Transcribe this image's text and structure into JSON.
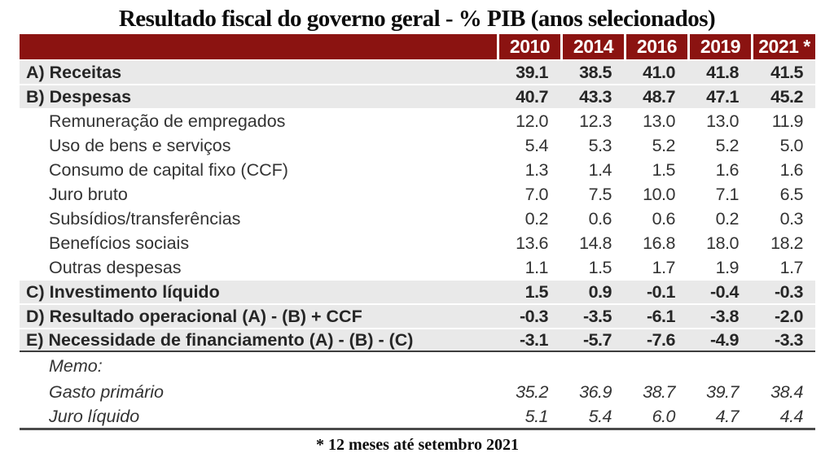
{
  "chart_data": {
    "type": "table",
    "title": "Resultado fiscal do governo geral - % PIB (anos selecionados)",
    "unit": "% PIB",
    "columns": [
      "2010",
      "2014",
      "2016",
      "2019",
      "2021 *"
    ],
    "rows": [
      {
        "label": "A) Receitas",
        "style": "total",
        "values": [
          "39.1",
          "38.5",
          "41.0",
          "41.8",
          "41.5"
        ]
      },
      {
        "label": "B) Despesas",
        "style": "total",
        "values": [
          "40.7",
          "43.3",
          "48.7",
          "47.1",
          "45.2"
        ]
      },
      {
        "label": "Remuneração de empregados",
        "style": "detail",
        "values": [
          "12.0",
          "12.3",
          "13.0",
          "13.0",
          "11.9"
        ]
      },
      {
        "label": "Uso de bens e serviços",
        "style": "detail",
        "values": [
          "5.4",
          "5.3",
          "5.2",
          "5.2",
          "5.0"
        ]
      },
      {
        "label": "Consumo de capital fixo (CCF)",
        "style": "detail",
        "values": [
          "1.3",
          "1.4",
          "1.5",
          "1.6",
          "1.6"
        ]
      },
      {
        "label": "Juro bruto",
        "style": "detail",
        "values": [
          "7.0",
          "7.5",
          "10.0",
          "7.1",
          "6.5"
        ]
      },
      {
        "label": "Subsídios/transferências",
        "style": "detail",
        "values": [
          "0.2",
          "0.6",
          "0.6",
          "0.2",
          "0.3"
        ]
      },
      {
        "label": "Benefícios sociais",
        "style": "detail",
        "values": [
          "13.6",
          "14.8",
          "16.8",
          "18.0",
          "18.2"
        ]
      },
      {
        "label": "Outras despesas",
        "style": "detail",
        "values": [
          "1.1",
          "1.5",
          "1.7",
          "1.9",
          "1.7"
        ]
      },
      {
        "label": "C) Investimento líquido",
        "style": "total",
        "values": [
          "1.5",
          "0.9",
          "-0.1",
          "-0.4",
          "-0.3"
        ]
      },
      {
        "label": "D) Resultado operacional (A) - (B) + CCF",
        "style": "total",
        "values": [
          "-0.3",
          "-3.5",
          "-6.1",
          "-3.8",
          "-2.0"
        ]
      },
      {
        "label": "E) Necessidade de financiamento (A) - (B) - (C)",
        "style": "total",
        "rule": "medium",
        "values": [
          "-3.1",
          "-5.7",
          "-7.6",
          "-4.9",
          "-3.3"
        ]
      },
      {
        "label": "Memo:",
        "style": "memo",
        "values": [
          "",
          "",
          "",
          "",
          ""
        ]
      },
      {
        "label": "Gasto primário",
        "style": "memo",
        "values": [
          "35.2",
          "36.9",
          "38.7",
          "39.7",
          "38.4"
        ]
      },
      {
        "label": "Juro líquido",
        "style": "memo",
        "rule": "thick",
        "values": [
          "5.1",
          "5.4",
          "6.0",
          "4.7",
          "4.4"
        ]
      }
    ],
    "footnote": "* 12 meses até setembro 2021",
    "colors": {
      "header_bg": "#8b1311",
      "header_text": "#ffffff",
      "total_row_bg": "#e9e9e9",
      "detail_row_bg": "#ffffff",
      "text": "#333333"
    },
    "layout": {
      "grid": "off",
      "legend": "none",
      "numeric_alignment": "right"
    }
  }
}
